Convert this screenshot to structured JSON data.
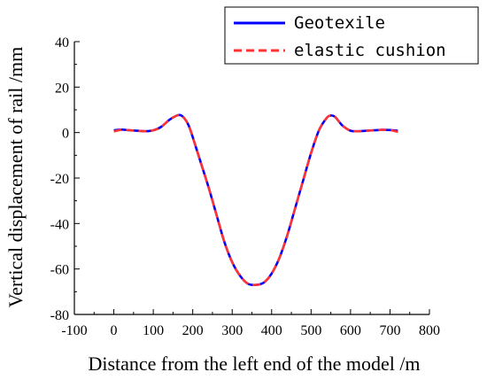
{
  "chart_data": {
    "type": "line",
    "xlabel": "Distance from the left end of the model /m",
    "ylabel": "Vertical displacement of rail /mm",
    "xlim": [
      -100,
      800
    ],
    "ylim": [
      -80,
      40
    ],
    "xticks": [
      -100,
      0,
      100,
      200,
      300,
      400,
      500,
      600,
      700,
      800
    ],
    "yticks": [
      -80,
      -60,
      -40,
      -20,
      0,
      20,
      40
    ],
    "grid": false,
    "legend_position": "top-right",
    "series": [
      {
        "name": "Geotexile",
        "color": "#0000ff",
        "style": "solid",
        "x": [
          0,
          20,
          40,
          60,
          80,
          100,
          120,
          140,
          160,
          170,
          180,
          190,
          200,
          220,
          240,
          260,
          280,
          300,
          320,
          340,
          360,
          380,
          400,
          420,
          440,
          460,
          480,
          500,
          520,
          540,
          550,
          560,
          570,
          580,
          600,
          620,
          640,
          660,
          680,
          700,
          720
        ],
        "y": [
          1,
          1.3,
          1,
          0.8,
          0.6,
          1,
          2.5,
          5.5,
          7.5,
          7.6,
          6,
          3,
          -2,
          -13,
          -24,
          -36,
          -48,
          -57,
          -63,
          -66.5,
          -67,
          -66,
          -62,
          -55,
          -45,
          -33,
          -21,
          -9,
          1,
          6.5,
          7.5,
          7,
          5,
          3,
          0.8,
          0.6,
          0.8,
          1,
          1.2,
          1.1,
          0.8
        ]
      },
      {
        "name": "elastic cushion",
        "color": "#ff3333",
        "style": "dashed",
        "x": [
          0,
          20,
          40,
          60,
          80,
          100,
          120,
          140,
          160,
          170,
          180,
          190,
          200,
          220,
          240,
          260,
          280,
          300,
          320,
          340,
          360,
          380,
          400,
          420,
          440,
          460,
          480,
          500,
          520,
          540,
          550,
          560,
          570,
          580,
          600,
          620,
          640,
          660,
          680,
          700,
          720
        ],
        "y": [
          0.5,
          1.2,
          1,
          0.8,
          0.6,
          1,
          2.5,
          5.5,
          7.5,
          7.6,
          6,
          3,
          -2,
          -13,
          -24,
          -36,
          -48,
          -57,
          -63,
          -66.5,
          -67,
          -66,
          -62,
          -55,
          -45,
          -33,
          -21,
          -9,
          1,
          6.5,
          7.5,
          7,
          5,
          3,
          0.8,
          0.6,
          0.8,
          1,
          1.2,
          1.1,
          0.3
        ]
      }
    ]
  }
}
